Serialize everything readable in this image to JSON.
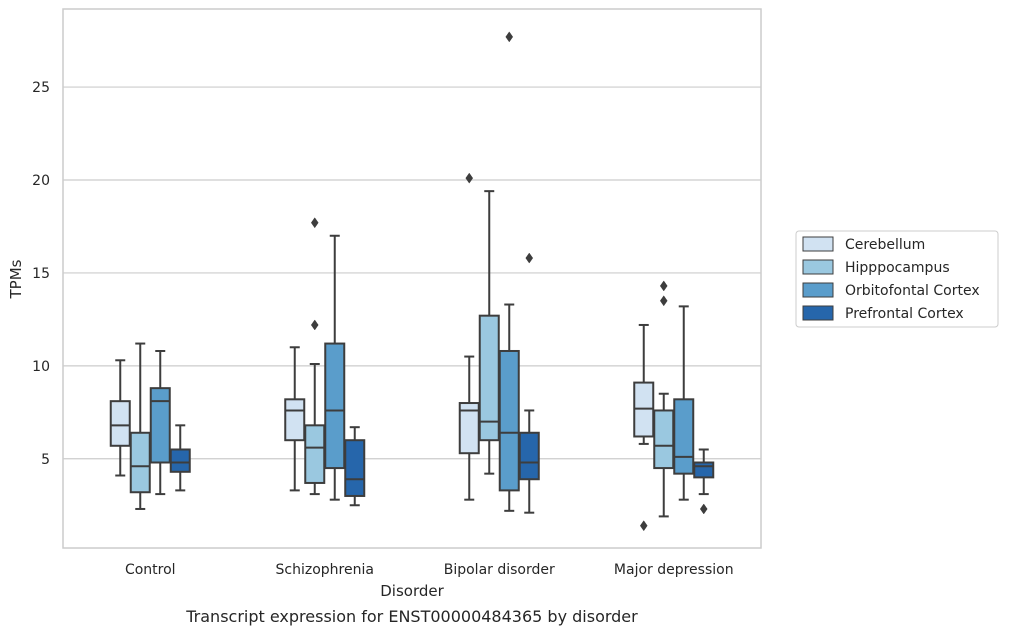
{
  "caption": "Transcript expression for ENST00000484365 by disorder",
  "chart_data": {
    "type": "box",
    "title": "",
    "xlabel": "Disorder",
    "ylabel": "TPMs",
    "ylim": [
      0.2,
      29.2
    ],
    "yticks": [
      5,
      10,
      15,
      20,
      25
    ],
    "grid": "horizontal",
    "legend_position": "right",
    "categories": [
      "Control",
      "Schizophrenia",
      "Bipolar disorder",
      "Major depression"
    ],
    "series": [
      {
        "name": "Cerebellum",
        "color": "#d1e2f2",
        "boxes": [
          {
            "whislo": 4.1,
            "q1": 5.7,
            "med": 6.8,
            "q3": 8.1,
            "whishi": 10.3,
            "fliers": []
          },
          {
            "whislo": 3.3,
            "q1": 6.0,
            "med": 7.6,
            "q3": 8.2,
            "whishi": 11.0,
            "fliers": []
          },
          {
            "whislo": 2.8,
            "q1": 5.3,
            "med": 7.6,
            "q3": 8.0,
            "whishi": 10.5,
            "fliers": [
              20.1
            ]
          },
          {
            "whislo": 5.8,
            "q1": 6.2,
            "med": 7.7,
            "q3": 9.1,
            "whishi": 12.2,
            "fliers": [
              1.4
            ]
          }
        ]
      },
      {
        "name": "Hipppocampus",
        "color": "#9ac8e0",
        "boxes": [
          {
            "whislo": 2.3,
            "q1": 3.2,
            "med": 4.6,
            "q3": 6.4,
            "whishi": 11.2,
            "fliers": []
          },
          {
            "whislo": 3.1,
            "q1": 3.7,
            "med": 5.6,
            "q3": 6.8,
            "whishi": 10.1,
            "fliers": [
              12.2,
              17.7
            ]
          },
          {
            "whislo": 4.2,
            "q1": 6.0,
            "med": 7.0,
            "q3": 12.7,
            "whishi": 19.4,
            "fliers": []
          },
          {
            "whislo": 1.9,
            "q1": 4.5,
            "med": 5.7,
            "q3": 7.6,
            "whishi": 8.5,
            "fliers": [
              13.5,
              14.3
            ]
          }
        ]
      },
      {
        "name": "Orbitofontal Cortex",
        "color": "#5a9dcb",
        "boxes": [
          {
            "whislo": 3.1,
            "q1": 4.8,
            "med": 8.1,
            "q3": 8.8,
            "whishi": 10.8,
            "fliers": []
          },
          {
            "whislo": 2.8,
            "q1": 4.5,
            "med": 7.6,
            "q3": 11.2,
            "whishi": 17.0,
            "fliers": []
          },
          {
            "whislo": 2.2,
            "q1": 3.3,
            "med": 6.4,
            "q3": 10.8,
            "whishi": 13.3,
            "fliers": [
              27.7
            ]
          },
          {
            "whislo": 2.8,
            "q1": 4.2,
            "med": 5.1,
            "q3": 8.2,
            "whishi": 13.2,
            "fliers": []
          }
        ]
      },
      {
        "name": "Prefrontal Cortex",
        "color": "#2666ab",
        "boxes": [
          {
            "whislo": 3.3,
            "q1": 4.3,
            "med": 4.8,
            "q3": 5.5,
            "whishi": 6.8,
            "fliers": []
          },
          {
            "whislo": 2.5,
            "q1": 3.0,
            "med": 3.9,
            "q3": 6.0,
            "whishi": 6.7,
            "fliers": []
          },
          {
            "whislo": 2.1,
            "q1": 3.9,
            "med": 4.8,
            "q3": 6.4,
            "whishi": 7.6,
            "fliers": [
              15.8
            ]
          },
          {
            "whislo": 3.1,
            "q1": 4.0,
            "med": 4.6,
            "q3": 4.8,
            "whishi": 5.5,
            "fliers": [
              2.3
            ]
          }
        ]
      }
    ]
  }
}
